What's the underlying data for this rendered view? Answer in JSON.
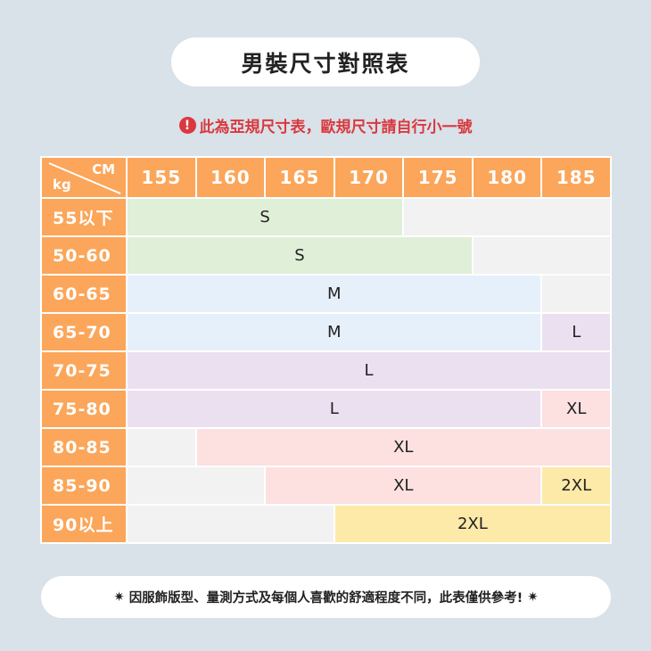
{
  "title": "男裝尺寸對照表",
  "warning": {
    "icon": "exclamation-circle-icon",
    "text": "此為亞規尺寸表，歐規尺寸請自行小一號"
  },
  "table": {
    "corner_top": "CM",
    "corner_bottom": "kg",
    "heights": [
      "155",
      "160",
      "165",
      "170",
      "175",
      "180",
      "185"
    ],
    "colors": {
      "header": "#fba65a",
      "S": "#e0efd8",
      "M": "#e6f0fb",
      "L": "#ebe0f0",
      "XL": "#fde0e0",
      "2XL": "#fde9a8",
      "none": "#f2f2f2"
    },
    "rows": [
      {
        "weight": "55以下",
        "segments": [
          {
            "size": "S",
            "from": "155",
            "to": "170"
          },
          {
            "size": "",
            "from": "175",
            "to": "185"
          }
        ]
      },
      {
        "weight": "50-60",
        "segments": [
          {
            "size": "S",
            "from": "155",
            "to": "175"
          },
          {
            "size": "",
            "from": "180",
            "to": "185"
          }
        ]
      },
      {
        "weight": "60-65",
        "segments": [
          {
            "size": "M",
            "from": "155",
            "to": "180"
          },
          {
            "size": "",
            "from": "185",
            "to": "185"
          }
        ]
      },
      {
        "weight": "65-70",
        "segments": [
          {
            "size": "M",
            "from": "155",
            "to": "180"
          },
          {
            "size": "L",
            "from": "185",
            "to": "185"
          }
        ]
      },
      {
        "weight": "70-75",
        "segments": [
          {
            "size": "L",
            "from": "155",
            "to": "185"
          }
        ]
      },
      {
        "weight": "75-80",
        "segments": [
          {
            "size": "L",
            "from": "155",
            "to": "180"
          },
          {
            "size": "XL",
            "from": "185",
            "to": "185"
          }
        ]
      },
      {
        "weight": "80-85",
        "segments": [
          {
            "size": "",
            "from": "155",
            "to": "155"
          },
          {
            "size": "XL",
            "from": "160",
            "to": "185"
          }
        ]
      },
      {
        "weight": "85-90",
        "segments": [
          {
            "size": "",
            "from": "155",
            "to": "160"
          },
          {
            "size": "XL",
            "from": "165",
            "to": "180"
          },
          {
            "size": "2XL",
            "from": "185",
            "to": "185"
          }
        ]
      },
      {
        "weight": "90以上",
        "segments": [
          {
            "size": "",
            "from": "155",
            "to": "165"
          },
          {
            "size": "2XL",
            "from": "170",
            "to": "185"
          }
        ]
      }
    ]
  },
  "footer": {
    "icon": "asterisk-burst-icon",
    "text": "因服飾版型、量測方式及每個人喜歡的舒適程度不同，此表僅供參考!"
  }
}
